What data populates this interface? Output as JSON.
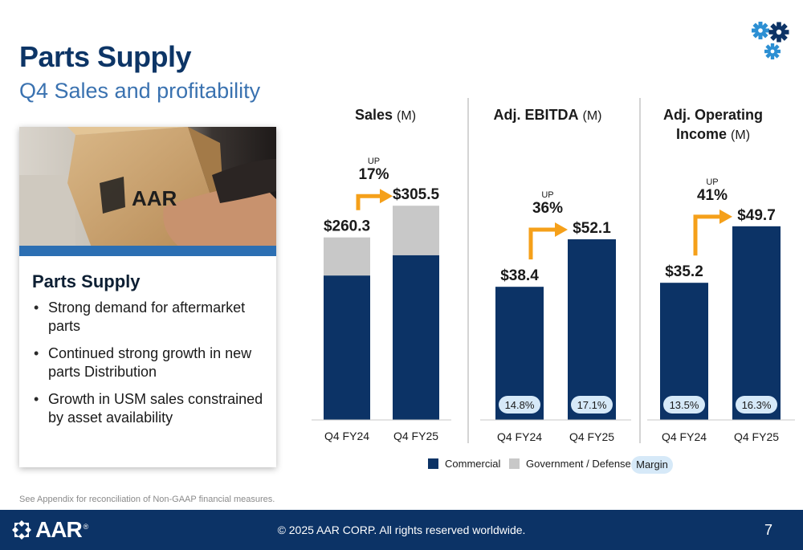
{
  "slide": {
    "title": "Parts Supply",
    "subtitle": "Q4 Sales and profitability",
    "footnote": "See Appendix for reconciliation of Non-GAAP financial measures.",
    "footer": {
      "logo_text": "AAR",
      "logo_reg": "®",
      "copyright": "© 2025 AAR CORP. All rights reserved worldwide.",
      "page_number": "7"
    },
    "icons": {
      "top_right": "gears-icon",
      "footer_logo": "aar-logo-icon"
    }
  },
  "card": {
    "photo_box_text": "AAR",
    "heading": "Parts Supply",
    "bullets": [
      "Strong demand for aftermarket parts",
      "Continued strong growth in new parts Distribution",
      "Growth in USM sales constrained by asset availability"
    ]
  },
  "colors": {
    "navy": "#0c3366",
    "commercial": "#0c3366",
    "government_defense": "#c8c8c8",
    "margin_pill": "#d6e9f8",
    "arrow": "#f5a01a",
    "title": "#0d3566",
    "subtitle": "#3a72b0"
  },
  "legend": {
    "commercial": "Commercial",
    "government_defense": "Government / Defense",
    "margin": "Margin"
  },
  "chart_data": [
    {
      "type": "bar",
      "title": "Sales",
      "unit": "(M)",
      "categories": [
        "Q4 FY24",
        "Q4 FY25"
      ],
      "totals": [
        260.3,
        305.5
      ],
      "total_labels": [
        "$260.3",
        "$305.5"
      ],
      "series": [
        {
          "name": "Commercial",
          "values": [
            206,
            235
          ]
        },
        {
          "name": "Government / Defense",
          "values": [
            54.3,
            70.5
          ]
        }
      ],
      "change": {
        "direction": "UP",
        "pct": "17%"
      },
      "ylim": [
        0,
        355
      ]
    },
    {
      "type": "bar",
      "title": "Adj. EBITDA",
      "unit": "(M)",
      "categories": [
        "Q4 FY24",
        "Q4 FY25"
      ],
      "totals": [
        38.4,
        52.1
      ],
      "total_labels": [
        "$38.4",
        "$52.1"
      ],
      "margins": [
        "14.8%",
        "17.1%"
      ],
      "change": {
        "direction": "UP",
        "pct": "36%"
      },
      "ylim": [
        0,
        66
      ]
    },
    {
      "type": "bar",
      "title": "Adj. Operating",
      "title_line2": "Income",
      "unit": "(M)",
      "categories": [
        "Q4 FY24",
        "Q4 FY25"
      ],
      "totals": [
        35.2,
        49.7
      ],
      "total_labels": [
        "$35.2",
        "$49.7"
      ],
      "margins": [
        "13.5%",
        "16.3%"
      ],
      "change": {
        "direction": "UP",
        "pct": "41%"
      },
      "ylim": [
        0,
        61
      ]
    }
  ]
}
